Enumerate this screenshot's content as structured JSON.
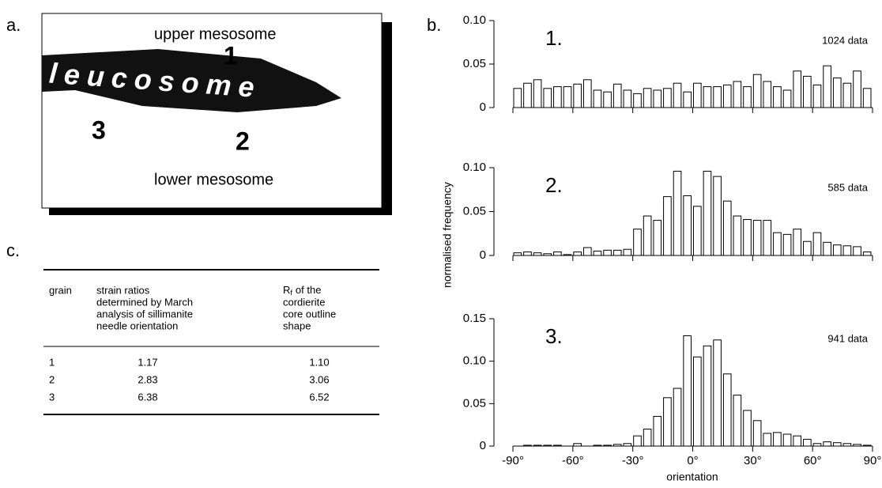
{
  "panel_a": {
    "label": "a.",
    "upper": "upper mesosome",
    "lower": "lower mesosome",
    "leucosome": "leucosome",
    "points": [
      "1",
      "2",
      "3"
    ]
  },
  "panel_b": {
    "label": "b."
  },
  "chart_data": [
    {
      "type": "histogram",
      "annotation": "1.",
      "note": "1024 data",
      "color": "#ffffff",
      "edgecolor": "#000000",
      "bins": [
        -90,
        -85,
        -80,
        -75,
        -70,
        -65,
        -60,
        -55,
        -50,
        -45,
        -40,
        -35,
        -30,
        -25,
        -20,
        -15,
        -10,
        -5,
        0,
        5,
        10,
        15,
        20,
        25,
        30,
        35,
        40,
        45,
        50,
        55,
        60,
        65,
        70,
        75,
        80,
        85,
        90
      ],
      "values": [
        0.022,
        0.028,
        0.032,
        0.022,
        0.024,
        0.024,
        0.027,
        0.032,
        0.02,
        0.018,
        0.027,
        0.02,
        0.016,
        0.022,
        0.02,
        0.022,
        0.028,
        0.018,
        0.028,
        0.024,
        0.024,
        0.026,
        0.03,
        0.024,
        0.038,
        0.03,
        0.024,
        0.02,
        0.042,
        0.036,
        0.026,
        0.048,
        0.034,
        0.028,
        0.042,
        0.022
      ],
      "xlim": [
        -90,
        90
      ],
      "xticks": [
        -90,
        -60,
        -30,
        0,
        30,
        60,
        90
      ],
      "ylim": [
        0,
        0.1
      ],
      "yticks": [
        0,
        0.05,
        {
          "value": 0.1,
          "label": "0.10"
        }
      ]
    },
    {
      "type": "histogram",
      "annotation": "2.",
      "note": "585 data",
      "color": "#ffffff",
      "edgecolor": "#000000",
      "ylabel": "normalised frequency",
      "bins": [
        -90,
        -85,
        -80,
        -75,
        -70,
        -65,
        -60,
        -55,
        -50,
        -45,
        -40,
        -35,
        -30,
        -25,
        -20,
        -15,
        -10,
        -5,
        0,
        5,
        10,
        15,
        20,
        25,
        30,
        35,
        40,
        45,
        50,
        55,
        60,
        65,
        70,
        75,
        80,
        85,
        90
      ],
      "values": [
        0.003,
        0.004,
        0.003,
        0.002,
        0.004,
        0.001,
        0.004,
        0.009,
        0.005,
        0.006,
        0.006,
        0.007,
        0.03,
        0.045,
        0.04,
        0.067,
        0.096,
        0.068,
        0.056,
        0.096,
        0.09,
        0.062,
        0.045,
        0.041,
        0.04,
        0.04,
        0.026,
        0.024,
        0.03,
        0.016,
        0.026,
        0.015,
        0.012,
        0.011,
        0.01,
        0.004
      ],
      "xlim": [
        -90,
        90
      ],
      "xticks": [
        -90,
        -60,
        -30,
        0,
        30,
        60,
        90
      ],
      "ylim": [
        0,
        0.1
      ],
      "yticks": [
        0,
        0.05,
        {
          "value": 0.1,
          "label": "0.10"
        }
      ]
    },
    {
      "type": "histogram",
      "annotation": "3.",
      "note": "941 data",
      "color": "#ffffff",
      "edgecolor": "#000000",
      "xlabel": "orientation",
      "bins": [
        -90,
        -85,
        -80,
        -75,
        -70,
        -65,
        -60,
        -55,
        -50,
        -45,
        -40,
        -35,
        -30,
        -25,
        -20,
        -15,
        -10,
        -5,
        0,
        5,
        10,
        15,
        20,
        25,
        30,
        35,
        40,
        45,
        50,
        55,
        60,
        65,
        70,
        75,
        80,
        85,
        90
      ],
      "values": [
        0,
        0.001,
        0.001,
        0.001,
        0.001,
        0,
        0.003,
        0,
        0.001,
        0.001,
        0.002,
        0.003,
        0.012,
        0.02,
        0.035,
        0.057,
        0.068,
        0.13,
        0.105,
        0.118,
        0.125,
        0.085,
        0.06,
        0.042,
        0.03,
        0.015,
        0.016,
        0.014,
        0.012,
        0.008,
        0.003,
        0.005,
        0.004,
        0.003,
        0.002,
        0.001
      ],
      "xlim": [
        -90,
        90
      ],
      "xticks": [
        {
          "value": -90,
          "label": "-90°"
        },
        {
          "value": -60,
          "label": "-60°"
        },
        {
          "value": -30,
          "label": "-30°"
        },
        {
          "value": 0,
          "label": "0°"
        },
        {
          "value": 30,
          "label": "30°"
        },
        {
          "value": 60,
          "label": "60°"
        },
        {
          "value": 90,
          "label": "90°"
        }
      ],
      "ylim": [
        0,
        0.15
      ],
      "yticks": [
        0,
        0.05,
        {
          "value": 0.1,
          "label": "0.10"
        },
        0.15
      ]
    }
  ],
  "table": {
    "label": "c.",
    "header": [
      {
        "lines": [
          "grain"
        ]
      },
      {
        "lines": [
          "strain ratios",
          "determined by March",
          "analysis of sillimanite",
          "needle orientation"
        ]
      },
      {
        "symbol": "R",
        "subscript": "f",
        "lines": [
          "of the",
          "cordierite",
          "core outline",
          "shape"
        ]
      }
    ],
    "rows": [
      [
        "1",
        "1.17",
        "1.10"
      ],
      [
        "2",
        "2.83",
        "3.06"
      ],
      [
        "3",
        "6.38",
        "6.52"
      ]
    ]
  }
}
